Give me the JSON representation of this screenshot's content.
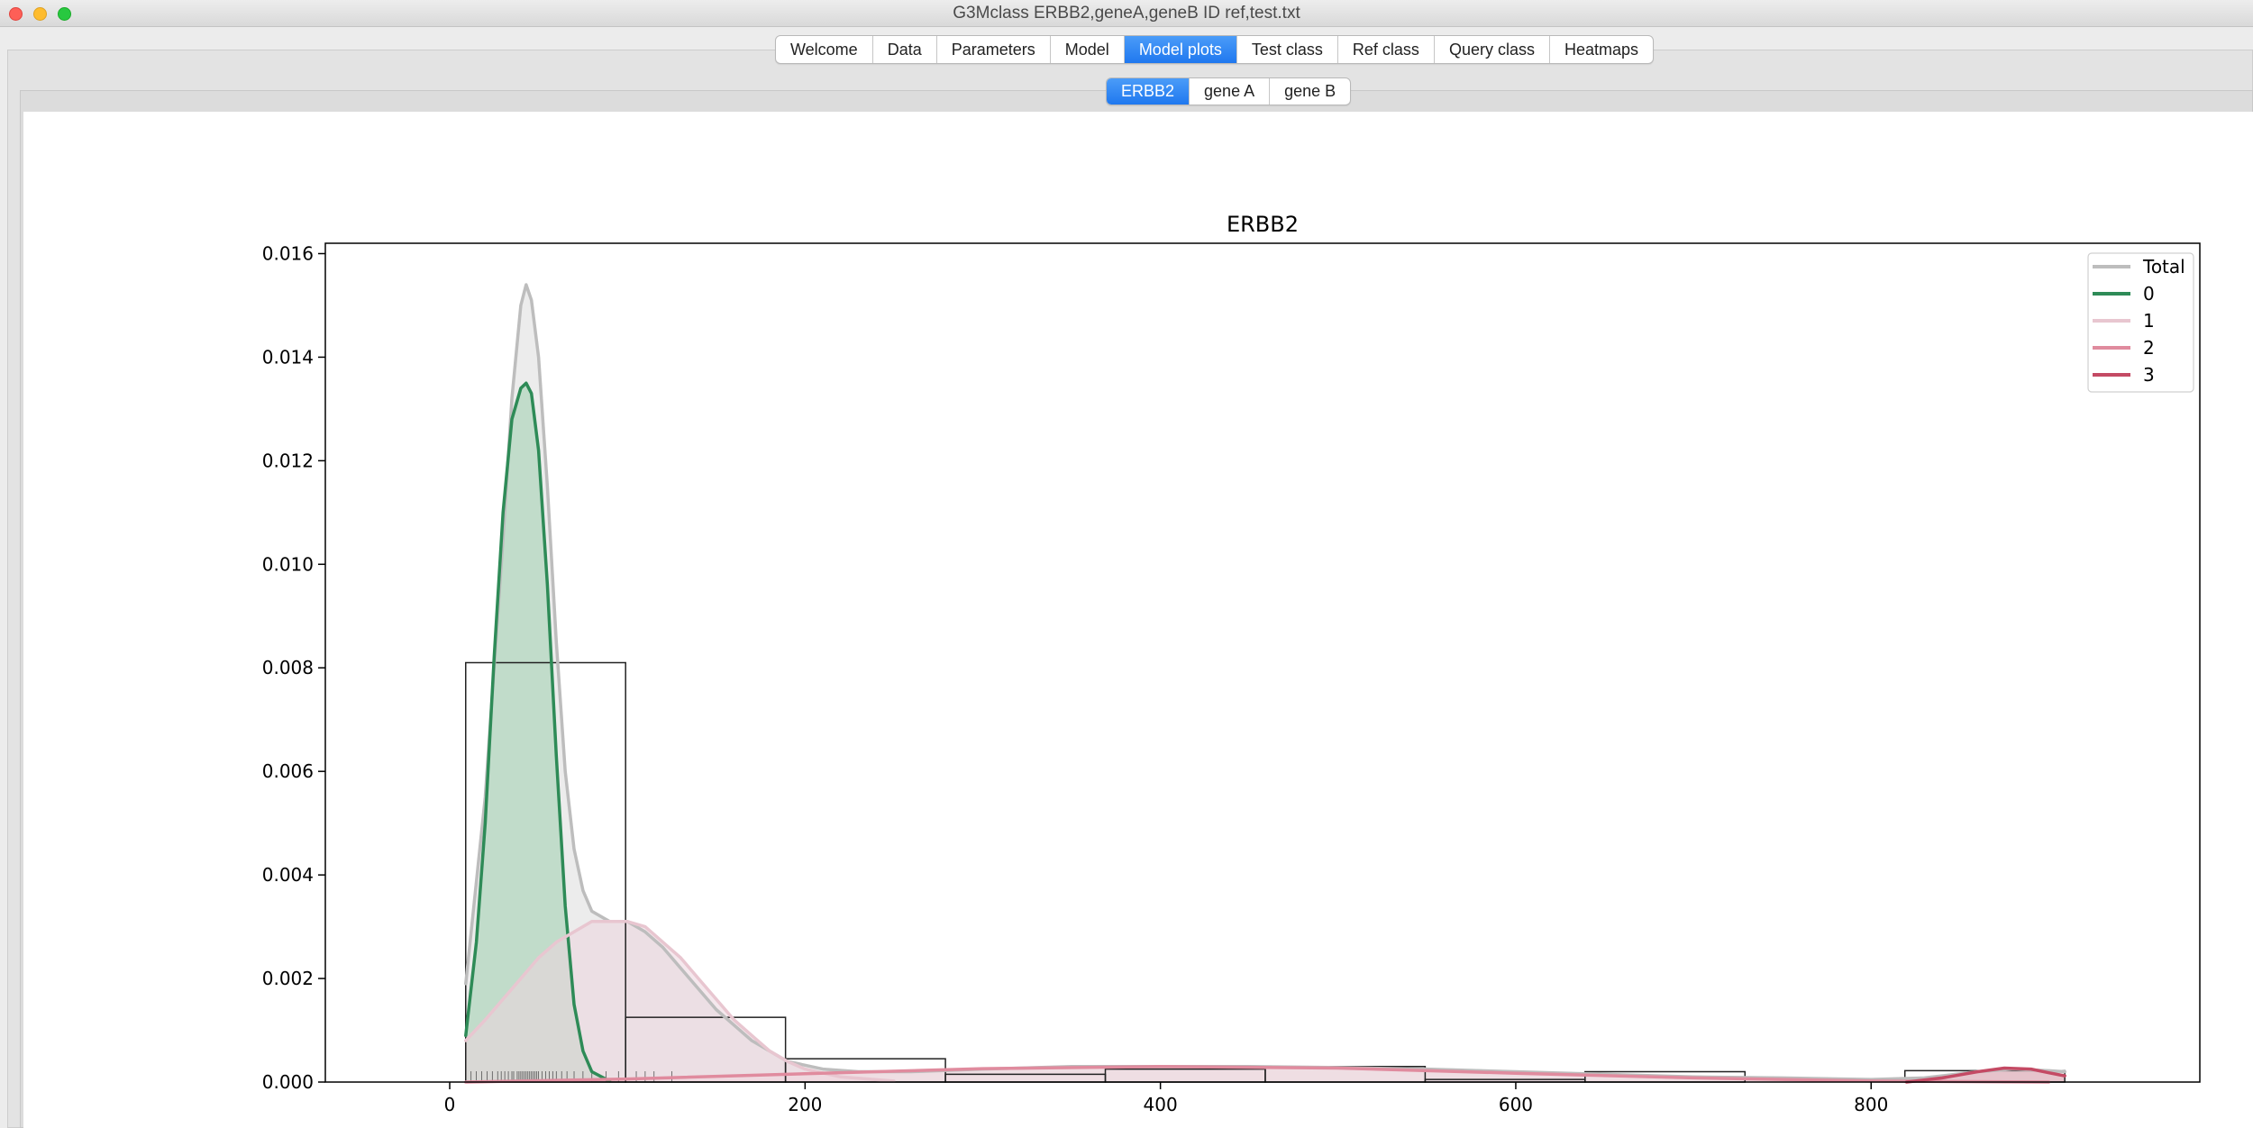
{
  "window": {
    "title": "G3Mclass ERBB2,geneA,geneB ID ref,test.txt"
  },
  "main_tabs": [
    "Welcome",
    "Data",
    "Parameters",
    "Model",
    "Model plots",
    "Test class",
    "Ref class",
    "Query class",
    "Heatmaps"
  ],
  "main_tab_active": "Model plots",
  "gene_tabs": [
    "ERBB2",
    "gene A",
    "gene B"
  ],
  "gene_tab_active": "ERBB2",
  "chart_data": {
    "type": "histogram with mixture density curves",
    "title": "ERBB2",
    "xlabel": "",
    "ylabel": "",
    "xlim": [
      -70,
      985
    ],
    "ylim": [
      0,
      0.0162
    ],
    "x_ticks": [
      0,
      200,
      400,
      600,
      800
    ],
    "x_tick_labels": [
      "0",
      "200",
      "400",
      "600",
      "800"
    ],
    "y_ticks": [
      0,
      0.002,
      0.004,
      0.006,
      0.008,
      0.01,
      0.012,
      0.014,
      0.016
    ],
    "y_tick_labels": [
      "0.000",
      "0.002",
      "0.004",
      "0.006",
      "0.008",
      "0.010",
      "0.012",
      "0.014",
      "0.016"
    ],
    "grid": false,
    "legend_position": "top-right",
    "histogram": {
      "bin_edges": [
        9,
        99,
        189,
        279,
        369,
        459,
        549,
        639,
        729,
        819,
        909
      ],
      "densities": [
        0.0081,
        0.00125,
        0.00045,
        0.00015,
        0.00025,
        0.0003,
        5e-05,
        0.0002,
        0.0,
        0.00022
      ]
    },
    "series": [
      {
        "name": "Total",
        "color": "#bdbdbd",
        "fill": "#dcdcdc",
        "x": [
          9,
          20,
          30,
          35,
          40,
          43,
          46,
          50,
          55,
          60,
          65,
          70,
          75,
          80,
          90,
          100,
          110,
          120,
          130,
          150,
          170,
          190,
          210,
          230,
          260,
          300,
          350,
          400,
          450,
          500,
          550,
          600,
          650,
          700,
          750,
          800,
          830,
          860,
          880,
          900,
          909
        ],
        "y": [
          0.0019,
          0.0055,
          0.0105,
          0.0132,
          0.015,
          0.0154,
          0.0151,
          0.014,
          0.0115,
          0.0085,
          0.006,
          0.0045,
          0.0037,
          0.0033,
          0.0031,
          0.0031,
          0.0029,
          0.0026,
          0.0022,
          0.0014,
          0.0008,
          0.0004,
          0.00025,
          0.0002,
          0.0002,
          0.00025,
          0.0003,
          0.0003,
          0.0003,
          0.00028,
          0.00025,
          0.0002,
          0.00015,
          0.0001,
          8e-05,
          5e-05,
          8e-05,
          0.0002,
          0.00025,
          0.00022,
          0.0002
        ]
      },
      {
        "name": "0",
        "color": "#2e8b57",
        "fill": "#9fcfae",
        "x": [
          9,
          15,
          20,
          25,
          30,
          35,
          40,
          43,
          46,
          50,
          55,
          60,
          65,
          70,
          75,
          80,
          90
        ],
        "y": [
          0.0009,
          0.0027,
          0.005,
          0.0082,
          0.011,
          0.0128,
          0.0134,
          0.0135,
          0.0133,
          0.0122,
          0.0096,
          0.0063,
          0.0034,
          0.0015,
          0.0006,
          0.0002,
          2e-05
        ]
      },
      {
        "name": "1",
        "color": "#e8c6d0",
        "fill": "#ecd6de",
        "x": [
          9,
          20,
          30,
          40,
          50,
          60,
          70,
          80,
          90,
          100,
          110,
          120,
          130,
          140,
          150,
          160,
          170,
          180,
          190,
          200,
          220,
          250
        ],
        "y": [
          0.0008,
          0.0012,
          0.0016,
          0.002,
          0.0024,
          0.0027,
          0.0029,
          0.0031,
          0.0031,
          0.0031,
          0.003,
          0.0027,
          0.0024,
          0.002,
          0.0016,
          0.0012,
          0.0009,
          0.0006,
          0.0004,
          0.00025,
          0.0001,
          2e-05
        ]
      },
      {
        "name": "2",
        "color": "#e08b9e",
        "fill": "#f3d3dc",
        "x": [
          9,
          100,
          200,
          300,
          400,
          500,
          600,
          700,
          800,
          900
        ],
        "y": [
          0.0,
          6e-05,
          0.00016,
          0.00026,
          0.0003,
          0.00027,
          0.00017,
          8e-05,
          2e-05,
          0.0
        ]
      },
      {
        "name": "3",
        "color": "#c44a64",
        "fill": "#e2a3b1",
        "x": [
          820,
          840,
          860,
          875,
          890,
          900,
          909
        ],
        "y": [
          0.0,
          8e-05,
          0.0002,
          0.00027,
          0.00025,
          0.00018,
          0.00012
        ]
      }
    ],
    "rug_x": [
      12,
      15,
      18,
      21,
      24,
      27,
      29,
      31,
      33,
      35,
      36,
      38,
      39,
      40,
      41,
      42,
      43,
      44,
      45,
      46,
      47,
      48,
      49,
      50,
      52,
      54,
      56,
      58,
      60,
      63,
      66,
      70,
      75,
      80,
      88,
      95,
      105,
      110,
      115,
      125
    ]
  }
}
